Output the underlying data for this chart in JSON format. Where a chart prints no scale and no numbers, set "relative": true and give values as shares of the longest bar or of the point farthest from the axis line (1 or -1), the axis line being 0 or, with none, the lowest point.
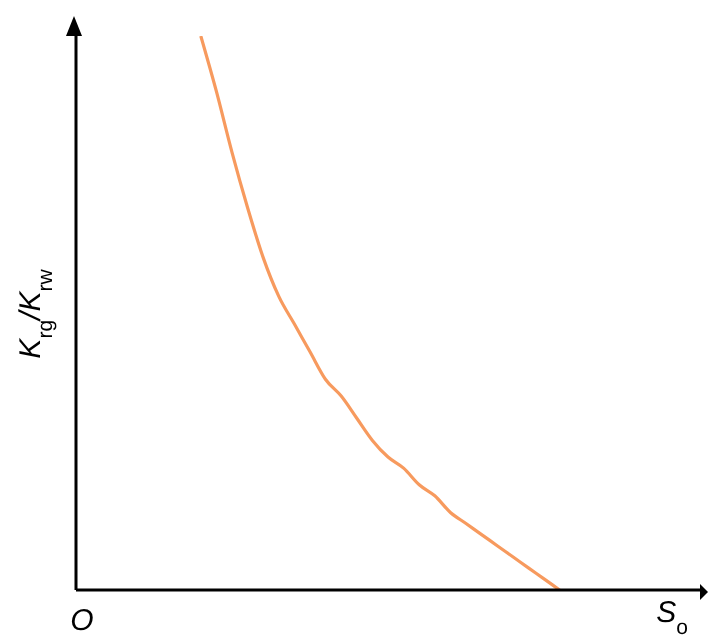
{
  "chart_data": {
    "type": "line",
    "relative": true,
    "xlabel": "S$_{o}$",
    "ylabel": "K$_{rg}$/K$_{rw}$",
    "annotations": [
      "O"
    ],
    "marker": "none",
    "categories": [
      null,
      null,
      null,
      null,
      null,
      null,
      null,
      null,
      null,
      null,
      null,
      null,
      null,
      null,
      null,
      null,
      null,
      null,
      null,
      null,
      null,
      null,
      null,
      null,
      null,
      null,
      null,
      null,
      null,
      null,
      null,
      null,
      null,
      null,
      null,
      null,
      null,
      null,
      null,
      null,
      null
    ],
    "series": [
      {
        "color": "#f79a5e",
        "values": [
          null,
          null,
          null,
          null,
          null,
          null,
          null,
          null,
          1.0,
          0.9,
          0.79,
          0.69,
          0.6,
          0.53,
          0.48,
          0.43,
          0.38,
          0.35,
          0.31,
          0.27,
          0.24,
          0.22,
          0.19,
          0.17,
          0.14,
          0.12,
          0.1,
          0.08,
          0.06,
          0.04,
          0.02,
          0,
          null,
          null,
          null,
          null,
          null,
          null,
          null,
          null,
          null
        ]
      }
    ]
  }
}
